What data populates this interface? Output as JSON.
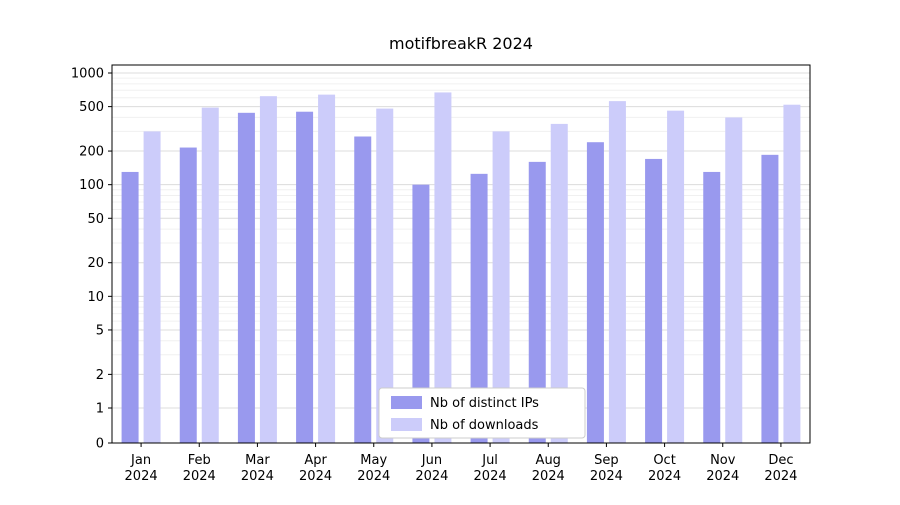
{
  "chart_data": {
    "type": "bar",
    "title": "motifbreakR 2024",
    "categories": [
      "Jan",
      "Feb",
      "Mar",
      "Apr",
      "May",
      "Jun",
      "Jul",
      "Aug",
      "Sep",
      "Oct",
      "Nov",
      "Dec"
    ],
    "x_year": "2024",
    "yticks": [
      0,
      1,
      2,
      5,
      10,
      20,
      50,
      100,
      200,
      500,
      1000
    ],
    "yscale": "log",
    "ylim": [
      0,
      1000
    ],
    "grid": true,
    "legend_position": "lower center",
    "series": [
      {
        "name": "Nb of distinct IPs",
        "color": "#9999ee",
        "values": [
          130,
          215,
          440,
          450,
          270,
          100,
          125,
          160,
          240,
          170,
          130,
          185
        ]
      },
      {
        "name": "Nb of downloads",
        "color": "#ccccfa",
        "values": [
          300,
          490,
          620,
          640,
          480,
          670,
          300,
          350,
          560,
          460,
          400,
          520
        ]
      }
    ]
  }
}
